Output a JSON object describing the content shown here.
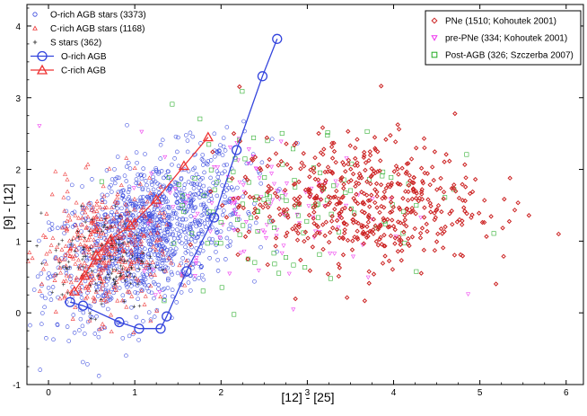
{
  "chart_data": {
    "type": "scatter",
    "title": "",
    "xlabel": "[12] - [25]",
    "ylabel": "[9] - [12]",
    "xlim": [
      -0.25,
      6.2
    ],
    "ylim": [
      -1,
      4.3
    ],
    "grid": false,
    "x_ticks": [
      0,
      1,
      2,
      3,
      4,
      5,
      6
    ],
    "y_ticks": [
      -1,
      0,
      1,
      2,
      3,
      4
    ],
    "colors": {
      "o_rich": "#3344dd",
      "c_rich": "#ee3333",
      "s_stars": "#222222",
      "pne": "#cc2222",
      "pre_pne": "#ee33ee",
      "post_agb": "#22aa22",
      "axis": "#000000"
    },
    "legend_left": {
      "position": "top-left",
      "items": [
        {
          "label": "O-rich AGB stars (3373)",
          "marker": "circle",
          "color_key": "o_rich"
        },
        {
          "label": "C-rich AGB stars (1168)",
          "marker": "triangle",
          "color_key": "c_rich"
        },
        {
          "label": "S stars (362)",
          "marker": "cross",
          "color_key": "s_stars"
        },
        {
          "label": "O-rich AGB",
          "marker": "line-circle",
          "color_key": "o_rich"
        },
        {
          "label": "C-rich AGB",
          "marker": "line-triangle",
          "color_key": "c_rich"
        }
      ]
    },
    "legend_right": {
      "position": "top-right",
      "items": [
        {
          "label": "PNe (1510; Kohoutek 2001)",
          "marker": "diamond",
          "color_key": "pne"
        },
        {
          "label": "pre-PNe (334; Kohoutek 2001)",
          "marker": "down-triangle",
          "color_key": "pre_pne"
        },
        {
          "label": "Post-AGB (326; Szczerba 2007)",
          "marker": "square",
          "color_key": "post_agb"
        }
      ]
    },
    "series": [
      {
        "name": "O-rich AGB stars",
        "count": 3373,
        "marker": "circle",
        "center": [
          1.15,
          1.1
        ],
        "spread": [
          0.55,
          0.5
        ]
      },
      {
        "name": "C-rich AGB stars",
        "count": 1168,
        "marker": "triangle",
        "center": [
          0.6,
          0.85
        ],
        "spread": [
          0.35,
          0.45
        ]
      },
      {
        "name": "S stars",
        "count": 362,
        "marker": "cross",
        "center": [
          0.65,
          0.75
        ],
        "spread": [
          0.3,
          0.35
        ]
      },
      {
        "name": "PNe",
        "count": 1510,
        "marker": "diamond",
        "center": [
          3.6,
          1.55
        ],
        "spread": [
          0.7,
          0.45
        ]
      },
      {
        "name": "pre-PNe",
        "count": 334,
        "marker": "down-triangle",
        "center": [
          2.6,
          1.45
        ],
        "spread": [
          0.8,
          0.55
        ]
      },
      {
        "name": "Post-AGB",
        "count": 326,
        "marker": "square",
        "center": [
          2.7,
          1.6
        ],
        "spread": [
          0.9,
          0.6
        ]
      }
    ],
    "model_tracks": [
      {
        "name": "O-rich AGB",
        "marker": "circle",
        "color_key": "o_rich",
        "x": [
          2.65,
          2.48,
          2.18,
          1.92,
          1.6,
          1.37,
          1.3,
          1.05,
          0.82,
          0.4,
          0.25
        ],
        "y": [
          3.82,
          3.3,
          2.27,
          1.33,
          0.58,
          -0.05,
          -0.22,
          -0.22,
          -0.13,
          0.1,
          0.15
        ]
      },
      {
        "name": "C-rich AGB",
        "marker": "triangle",
        "color_key": "c_rich",
        "x": [
          0.3,
          0.42,
          0.55,
          0.72,
          0.95,
          1.25,
          1.57,
          1.85
        ],
        "y": [
          0.3,
          0.52,
          0.8,
          1.02,
          1.22,
          1.58,
          2.05,
          2.45
        ]
      }
    ]
  }
}
